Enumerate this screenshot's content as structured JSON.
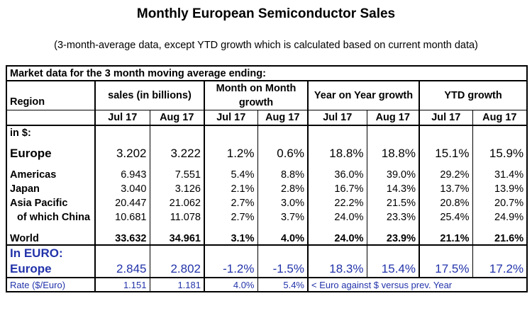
{
  "title": "Monthly European Semiconductor Sales",
  "subtitle": "(3-month-average data, except YTD growth which is calculated based on current month data)",
  "table": {
    "caption": "Market data for the 3 month moving average ending:",
    "region_header": "Region",
    "groups": [
      "sales (in billions)",
      "Month on Month growth",
      "Year on Year growth",
      "YTD growth"
    ],
    "months": [
      "Jul 17",
      "Aug 17",
      "Jul 17",
      "Aug 17",
      "Jul 17",
      "Aug 17",
      "Jul 17",
      "Aug 17"
    ],
    "usd_section_label": "in $:",
    "rows": [
      {
        "region": "Europe",
        "values": [
          "3.202",
          "3.222",
          "1.2%",
          "0.6%",
          "18.8%",
          "18.8%",
          "15.1%",
          "15.9%"
        ]
      },
      {
        "region": "Americas",
        "values": [
          "6.943",
          "7.551",
          "5.4%",
          "8.8%",
          "36.0%",
          "39.0%",
          "29.2%",
          "31.4%"
        ]
      },
      {
        "region": "Japan",
        "values": [
          "3.040",
          "3.126",
          "2.1%",
          "2.8%",
          "16.7%",
          "14.3%",
          "13.7%",
          "13.9%"
        ]
      },
      {
        "region": "Asia Pacific",
        "values": [
          "20.447",
          "21.062",
          "2.7%",
          "3.0%",
          "22.2%",
          "21.5%",
          "20.8%",
          "20.7%"
        ]
      },
      {
        "region": "of which China",
        "values": [
          "10.681",
          "11.078",
          "2.7%",
          "3.7%",
          "24.0%",
          "23.3%",
          "25.4%",
          "24.9%"
        ]
      },
      {
        "region": "World",
        "values": [
          "33.632",
          "34.961",
          "3.1%",
          "4.0%",
          "24.0%",
          "23.9%",
          "21.1%",
          "21.6%"
        ]
      }
    ],
    "euro_section_label": "In EURO:",
    "euro_row": {
      "region": "Europe",
      "values": [
        "2.845",
        "2.802",
        "-1.2%",
        "-1.5%",
        "18.3%",
        "15.4%",
        "17.5%",
        "17.2%"
      ]
    },
    "rate_row": {
      "label": "Rate ($/Euro)",
      "values": [
        "1.151",
        "1.181",
        "4.0%",
        "5.4%"
      ],
      "note": "< Euro against $ versus prev. Year"
    },
    "euro_color": "#2233aa"
  }
}
